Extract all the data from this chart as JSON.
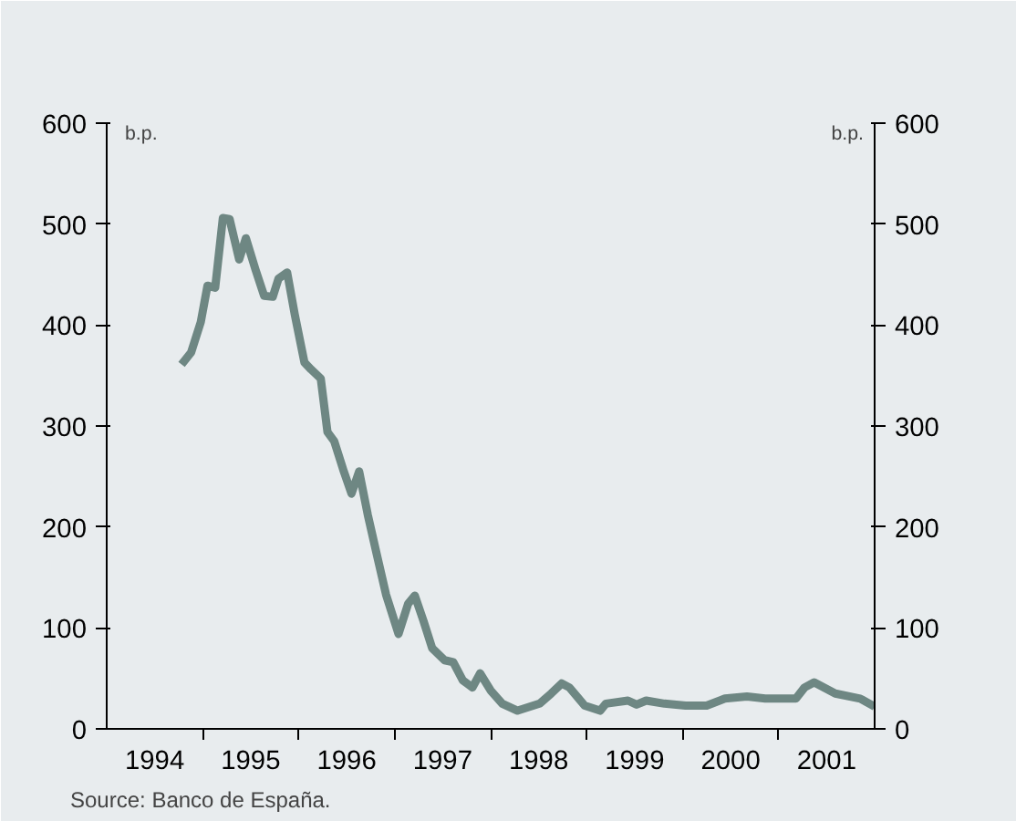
{
  "chart_data": {
    "type": "line",
    "ylabel": "b.p.",
    "y2label": "b.p.",
    "annotations": [
      "Source: Banco de España."
    ],
    "xlim": [
      1994,
      2002
    ],
    "ylim": [
      0,
      600
    ],
    "y2lim": [
      0,
      600
    ],
    "xticks": [
      {
        "value": 1994.5,
        "label": "1994"
      },
      {
        "value": 1995,
        "label": null
      },
      {
        "value": 1995.5,
        "label": "1995"
      },
      {
        "value": 1996,
        "label": null
      },
      {
        "value": 1996.5,
        "label": "1996"
      },
      {
        "value": 1997,
        "label": null
      },
      {
        "value": 1997.5,
        "label": "1997"
      },
      {
        "value": 1998,
        "label": null
      },
      {
        "value": 1998.5,
        "label": "1998"
      },
      {
        "value": 1999,
        "label": null
      },
      {
        "value": 1999.5,
        "label": "1999"
      },
      {
        "value": 2000,
        "label": null
      },
      {
        "value": 2000.5,
        "label": "2000"
      },
      {
        "value": 2001,
        "label": null
      },
      {
        "value": 2001.5,
        "label": "2001"
      }
    ],
    "yticks": [
      0,
      100,
      200,
      300,
      400,
      500,
      600
    ],
    "y2ticks": [
      0,
      100,
      200,
      300,
      400,
      500,
      600
    ],
    "grid": false,
    "marker": "none",
    "line_style": "solid",
    "series": [
      {
        "color": "#6e8783",
        "x": [
          1994.78,
          1994.88,
          1994.98,
          1995.05,
          1995.13,
          1995.21,
          1995.28,
          1995.38,
          1995.45,
          1995.55,
          1995.64,
          1995.73,
          1995.79,
          1995.88,
          1995.96,
          1996.06,
          1996.13,
          1996.23,
          1996.3,
          1996.37,
          1996.47,
          1996.55,
          1996.63,
          1996.72,
          1996.82,
          1996.91,
          1997.04,
          1997.14,
          1997.21,
          1997.3,
          1997.39,
          1997.52,
          1997.61,
          1997.71,
          1997.81,
          1997.89,
          1998.0,
          1998.12,
          1998.28,
          1998.51,
          1998.63,
          1998.74,
          1998.82,
          1998.98,
          1999.14,
          1999.2,
          1999.43,
          1999.52,
          1999.62,
          1999.81,
          2000.03,
          2000.25,
          2000.44,
          2000.67,
          2000.86,
          2001.02,
          2001.18,
          2001.27,
          2001.37,
          2001.59,
          2001.85,
          2002.0
        ],
        "values": [
          361,
          373,
          403,
          439,
          437,
          506,
          505,
          465,
          486,
          455,
          429,
          428,
          446,
          452,
          410,
          363,
          356,
          347,
          294,
          285,
          255,
          233,
          255,
          212,
          170,
          133,
          94,
          124,
          132,
          107,
          80,
          68,
          66,
          48,
          41,
          55,
          38,
          25,
          18,
          25,
          35,
          45,
          41,
          23,
          18,
          25,
          28,
          24,
          28,
          25,
          23,
          23,
          30,
          32,
          30,
          30,
          30,
          41,
          46,
          35,
          30,
          22
        ]
      }
    ]
  }
}
